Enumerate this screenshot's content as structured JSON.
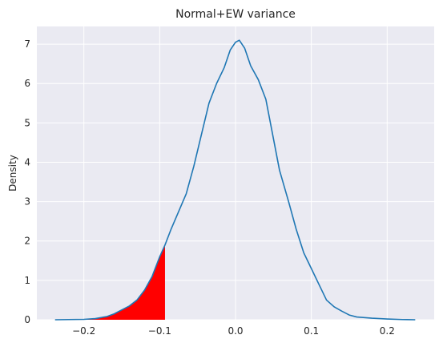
{
  "chart_data": {
    "type": "area",
    "title": "Normal+EW variance",
    "xlabel": "",
    "ylabel": "Density",
    "xlim": [
      -0.262,
      0.262
    ],
    "ylim": [
      0,
      7.45
    ],
    "grid": true,
    "style": {
      "background": "#eaeaf2",
      "grid_color": "#ffffff",
      "line_color": "#1f77b4",
      "fill_color": "#ff0000"
    },
    "x_ticks": [
      {
        "value": -0.2,
        "label": "−0.2"
      },
      {
        "value": -0.1,
        "label": "−0.1"
      },
      {
        "value": 0.0,
        "label": "0.0"
      },
      {
        "value": 0.1,
        "label": "0.1"
      },
      {
        "value": 0.2,
        "label": "0.2"
      }
    ],
    "y_ticks": [
      {
        "value": 0,
        "label": "0"
      },
      {
        "value": 1,
        "label": "1"
      },
      {
        "value": 2,
        "label": "2"
      },
      {
        "value": 3,
        "label": "3"
      },
      {
        "value": 4,
        "label": "4"
      },
      {
        "value": 5,
        "label": "5"
      },
      {
        "value": 6,
        "label": "6"
      },
      {
        "value": 7,
        "label": "7"
      }
    ],
    "series": [
      {
        "points": [
          [
            -0.238,
            0.0
          ],
          [
            -0.22,
            0.005
          ],
          [
            -0.2,
            0.01
          ],
          [
            -0.185,
            0.03
          ],
          [
            -0.17,
            0.08
          ],
          [
            -0.16,
            0.15
          ],
          [
            -0.15,
            0.25
          ],
          [
            -0.14,
            0.35
          ],
          [
            -0.13,
            0.5
          ],
          [
            -0.12,
            0.75
          ],
          [
            -0.11,
            1.1
          ],
          [
            -0.1,
            1.6
          ],
          [
            -0.093,
            1.9
          ],
          [
            -0.085,
            2.3
          ],
          [
            -0.075,
            2.75
          ],
          [
            -0.065,
            3.2
          ],
          [
            -0.055,
            3.9
          ],
          [
            -0.045,
            4.7
          ],
          [
            -0.035,
            5.5
          ],
          [
            -0.025,
            6.0
          ],
          [
            -0.015,
            6.4
          ],
          [
            -0.007,
            6.85
          ],
          [
            0.0,
            7.05
          ],
          [
            0.005,
            7.1
          ],
          [
            0.012,
            6.9
          ],
          [
            0.02,
            6.45
          ],
          [
            0.03,
            6.1
          ],
          [
            0.04,
            5.6
          ],
          [
            0.048,
            4.8
          ],
          [
            0.058,
            3.8
          ],
          [
            0.07,
            3.0
          ],
          [
            0.08,
            2.3
          ],
          [
            0.09,
            1.7
          ],
          [
            0.1,
            1.3
          ],
          [
            0.11,
            0.9
          ],
          [
            0.12,
            0.5
          ],
          [
            0.13,
            0.33
          ],
          [
            0.14,
            0.22
          ],
          [
            0.15,
            0.12
          ],
          [
            0.16,
            0.07
          ],
          [
            0.18,
            0.04
          ],
          [
            0.2,
            0.02
          ],
          [
            0.22,
            0.005
          ],
          [
            0.237,
            0.0
          ]
        ]
      }
    ],
    "shaded_region": {
      "from": -0.238,
      "to": -0.093
    }
  }
}
